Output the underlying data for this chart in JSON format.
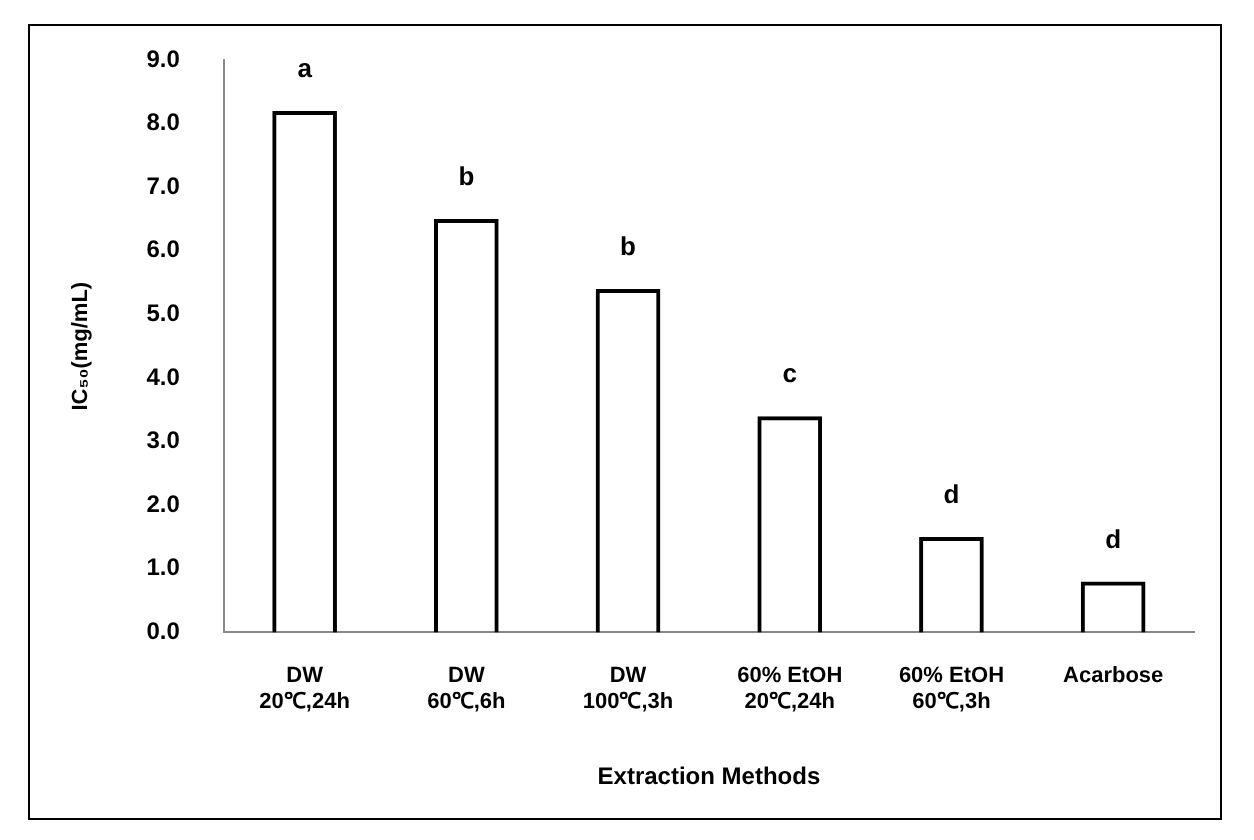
{
  "chart_data": {
    "type": "bar",
    "xlabel": "Extraction Methods",
    "ylabel": "IC₅₀(mg/mL)",
    "categories": [
      "DW\n20℃,24h",
      "DW\n60℃,6h",
      "DW\n100℃,3h",
      "60% EtOH\n20℃,24h",
      "60% EtOH\n60℃,3h",
      "Acarbose"
    ],
    "values": [
      8.2,
      6.5,
      5.4,
      3.4,
      1.5,
      0.8
    ],
    "color": "#000000",
    "ylim": [
      0,
      9
    ],
    "yticks": [
      {
        "value": 0,
        "label": "0.0"
      },
      {
        "value": 1,
        "label": "1.0"
      },
      {
        "value": 2,
        "label": "2.0"
      },
      {
        "value": 3,
        "label": "3.0"
      },
      {
        "value": 4,
        "label": "4.0"
      },
      {
        "value": 5,
        "label": "5.0"
      },
      {
        "value": 6,
        "label": "6.0"
      },
      {
        "value": 7,
        "label": "7.0"
      },
      {
        "value": 8,
        "label": "8.0"
      },
      {
        "value": 9,
        "label": "9.0"
      }
    ],
    "annotations": [
      {
        "text": "a",
        "x": "DW\n20℃,24h",
        "y": 8.2
      },
      {
        "text": "b",
        "x": "DW\n60℃,6h",
        "y": 6.5
      },
      {
        "text": "b",
        "x": "DW\n100℃,3h",
        "y": 5.4
      },
      {
        "text": "c",
        "x": "60% EtOH\n20℃,24h",
        "y": 3.4
      },
      {
        "text": "d",
        "x": "60% EtOH\n60℃,3h",
        "y": 1.5
      },
      {
        "text": "d",
        "x": "Acarbose",
        "y": 0.8
      }
    ],
    "grid": false,
    "legend": false
  }
}
